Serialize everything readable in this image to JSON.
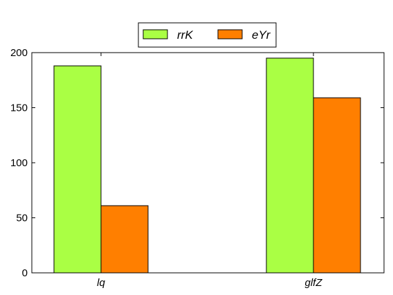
{
  "chart_data": {
    "type": "bar",
    "categories": [
      "lq",
      "glfZ"
    ],
    "series": [
      {
        "name": "rrK",
        "values": [
          188,
          195
        ],
        "color": "#aaff44"
      },
      {
        "name": "eYr",
        "values": [
          61,
          159
        ],
        "color": "#ff7f00"
      }
    ],
    "ylim": [
      0,
      200
    ],
    "yticks": [
      0,
      50,
      100,
      150,
      200
    ],
    "grid": false,
    "legend": "top-center"
  }
}
